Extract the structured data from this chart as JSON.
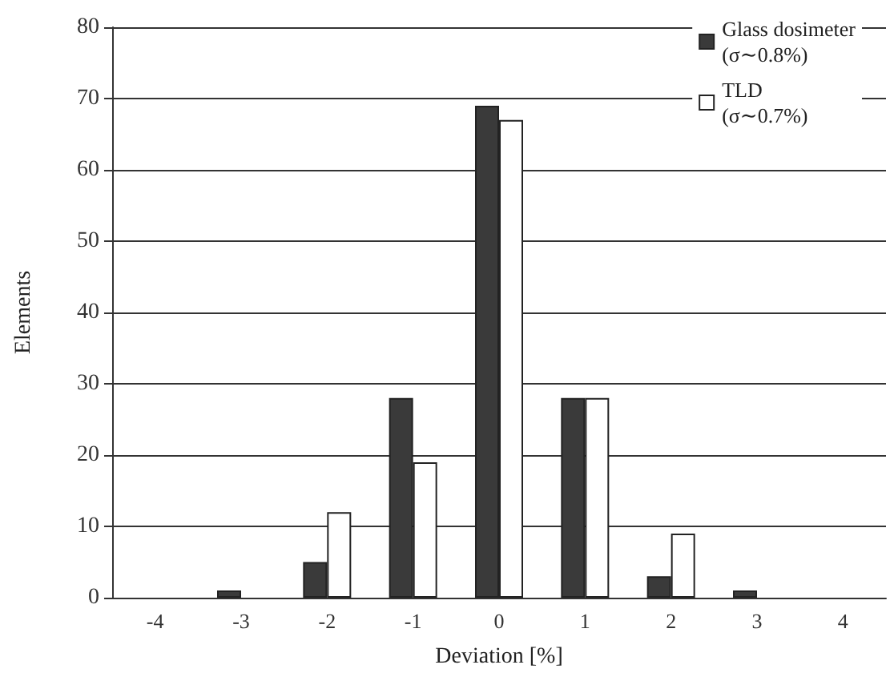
{
  "chart_data": {
    "type": "bar",
    "xlabel": "Deviation [%]",
    "ylabel": "Elements",
    "categories": [
      "-4",
      "-3",
      "-2",
      "-1",
      "0",
      "1",
      "2",
      "3",
      "4"
    ],
    "series": [
      {
        "name": "Glass dosimeter\n(σ∼0.8%)",
        "color": "#3a3a3a",
        "values": [
          0,
          1,
          5,
          28,
          69,
          28,
          3,
          1,
          0
        ]
      },
      {
        "name": "TLD\n(σ∼0.7%)",
        "color": "#ffffff",
        "values": [
          0,
          0,
          12,
          19,
          67,
          28,
          9,
          0,
          0
        ]
      }
    ],
    "ylim": [
      0,
      80
    ],
    "yticks": [
      0,
      10,
      20,
      30,
      40,
      50,
      60,
      70,
      80
    ],
    "grid": "y",
    "legend": "top right"
  }
}
